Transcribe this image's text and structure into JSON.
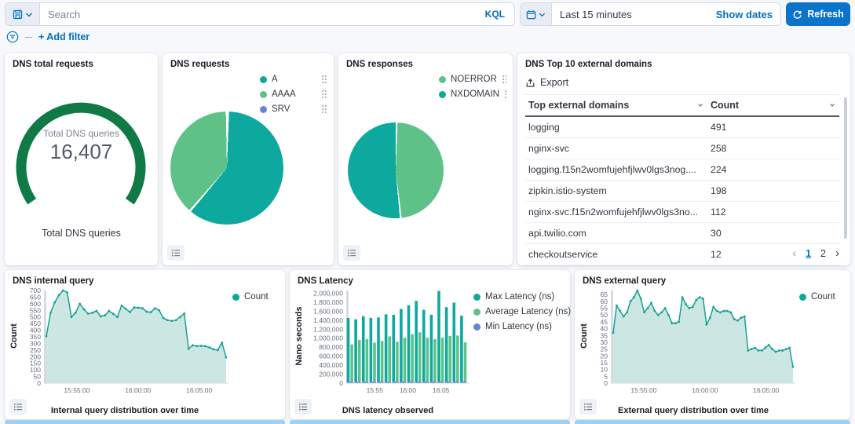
{
  "topbar": {
    "search": {
      "placeholder": "Search",
      "value": "",
      "language_badge": "KQL"
    },
    "time_picker": {
      "range_label": "Last 15 minutes",
      "show_dates_label": "Show dates"
    },
    "refresh_label": "Refresh",
    "filter_bar": {
      "add_filter_label": "+ Add filter"
    }
  },
  "panels": {
    "total_requests": {
      "title": "DNS total requests",
      "bottom_label": "Total DNS queries"
    },
    "requests": {
      "title": "DNS requests"
    },
    "responses": {
      "title": "DNS responses"
    },
    "top_domains": {
      "title": "DNS Top 10 external domains",
      "export_label": "Export",
      "columns": [
        "Top external domains",
        "Count"
      ],
      "rows": [
        [
          "logging",
          "491"
        ],
        [
          "nginx-svc",
          "258"
        ],
        [
          "logging.f15n2womfujehfjlwv0lgs3nog....",
          "224"
        ],
        [
          "zipkin.istio-system",
          "198"
        ],
        [
          "nginx-svc.f15n2womfujehfjlwv0lgs3no...",
          "112"
        ],
        [
          "api.twilio.com",
          "30"
        ],
        [
          "checkoutservice",
          "12"
        ]
      ],
      "pages": [
        "1",
        "2"
      ],
      "active_page": "1"
    },
    "internal_query": {
      "title": "DNS internal query"
    },
    "latency": {
      "title": "DNS Latency"
    },
    "external_query": {
      "title": "DNS external query"
    }
  },
  "colors": {
    "teal": "#0da99e",
    "green": "#5ec288",
    "blue": "#6584d8",
    "gauge_green": "#0f7a45",
    "accent_blue": "#0071c2",
    "area_fill": "#cce7e3"
  },
  "chart_data": [
    {
      "type": "gauge",
      "title": "DNS total requests",
      "label": "Total DNS queries",
      "value": 16407,
      "display_value": "16,407",
      "color": "#0f7a45"
    },
    {
      "type": "pie",
      "title": "DNS requests",
      "slices": [
        {
          "label": "A",
          "value": 61,
          "color": "#0da99e"
        },
        {
          "label": "AAAA",
          "value": 38.7,
          "color": "#5ec288"
        },
        {
          "label": "SRV",
          "value": 0.3,
          "color": "#6584d8"
        }
      ]
    },
    {
      "type": "pie",
      "title": "DNS responses",
      "slices": [
        {
          "label": "NOERROR",
          "value": 48,
          "color": "#5ec288"
        },
        {
          "label": "NXDOMAIN",
          "value": 52,
          "color": "#0da99e"
        }
      ]
    },
    {
      "type": "area",
      "title": "DNS internal query",
      "xlabel": "Internal query distribution over time",
      "ylabel": "Count",
      "legend": [
        {
          "label": "Count",
          "color": "#0da99e"
        }
      ],
      "ylim": [
        0,
        700
      ],
      "ytick_max": 700,
      "ytick_step": 50,
      "x_ticks": [
        {
          "label": "15:55:00",
          "pos": 0.17
        },
        {
          "label": "16:00:00",
          "pos": 0.51
        },
        {
          "label": "16:05:00",
          "pos": 0.85
        }
      ],
      "color": "#14a195",
      "fill": "#cce7e3",
      "values": [
        355,
        530,
        610,
        665,
        700,
        685,
        500,
        532,
        600,
        558,
        525,
        532,
        546,
        505,
        512,
        546,
        524,
        500,
        586,
        562,
        537,
        572,
        570,
        566,
        540,
        536,
        566,
        550,
        492,
        476,
        470,
        476,
        500,
        526,
        260,
        286,
        280,
        282,
        280,
        270,
        256,
        250,
        305,
        195
      ]
    },
    {
      "type": "bar",
      "title": "DNS Latency",
      "xlabel": "DNS latency observed",
      "ylabel": "Nano seconds",
      "ylim": [
        0,
        2060000
      ],
      "ytick_max": 2000000,
      "ytick_step": 200000,
      "ytick_format": "comma",
      "x_ticks": [
        {
          "label": "15:55",
          "pos": 0.22
        },
        {
          "label": "16:00",
          "pos": 0.5
        },
        {
          "label": "16:05",
          "pos": 0.78
        }
      ],
      "series": [
        {
          "name": "Max Latency (ns)",
          "color": "#0da99e",
          "values": [
            1450000,
            1420000,
            1490000,
            1450000,
            1460000,
            1530000,
            1520000,
            1650000,
            1730000,
            1830000,
            1630000,
            1520000,
            2050000,
            1690000,
            1790000,
            1500000
          ]
        },
        {
          "name": "Average Latency (ns)",
          "color": "#5ec288",
          "values": [
            860000,
            960000,
            980000,
            900000,
            940000,
            1040000,
            920000,
            1010000,
            1090000,
            1130000,
            1010000,
            980000,
            1010000,
            1050000,
            1060000,
            910000
          ]
        },
        {
          "name": "Min Latency (ns)",
          "color": "#6584d8",
          "values": [
            15000,
            15000,
            15000,
            15000,
            15000,
            15000,
            15000,
            15000,
            15000,
            15000,
            15000,
            15000,
            15000,
            15000,
            15000,
            15000
          ]
        }
      ]
    },
    {
      "type": "area",
      "title": "DNS external query",
      "xlabel": "External query distribution over time",
      "ylabel": "Count",
      "legend": [
        {
          "label": "Count",
          "color": "#0da99e"
        }
      ],
      "ylim": [
        0,
        68
      ],
      "ytick_max": 65,
      "ytick_step": 5,
      "x_ticks": [
        {
          "label": "15:55:00",
          "pos": 0.17
        },
        {
          "label": "16:00:00",
          "pos": 0.51
        },
        {
          "label": "16:05:00",
          "pos": 0.85
        }
      ],
      "color": "#14a195",
      "fill": "#cce7e3",
      "values": [
        37,
        57,
        53,
        49,
        52,
        60,
        63,
        68,
        62,
        52,
        55,
        59,
        53,
        50,
        52,
        55,
        50,
        44,
        44,
        45,
        63,
        58,
        55,
        56,
        61,
        63,
        62,
        43,
        48,
        56,
        53,
        52,
        53,
        53,
        52,
        47,
        46,
        48,
        49,
        24,
        25,
        26,
        24,
        24,
        26,
        28,
        25,
        23,
        24,
        24,
        25,
        26,
        12
      ]
    }
  ]
}
